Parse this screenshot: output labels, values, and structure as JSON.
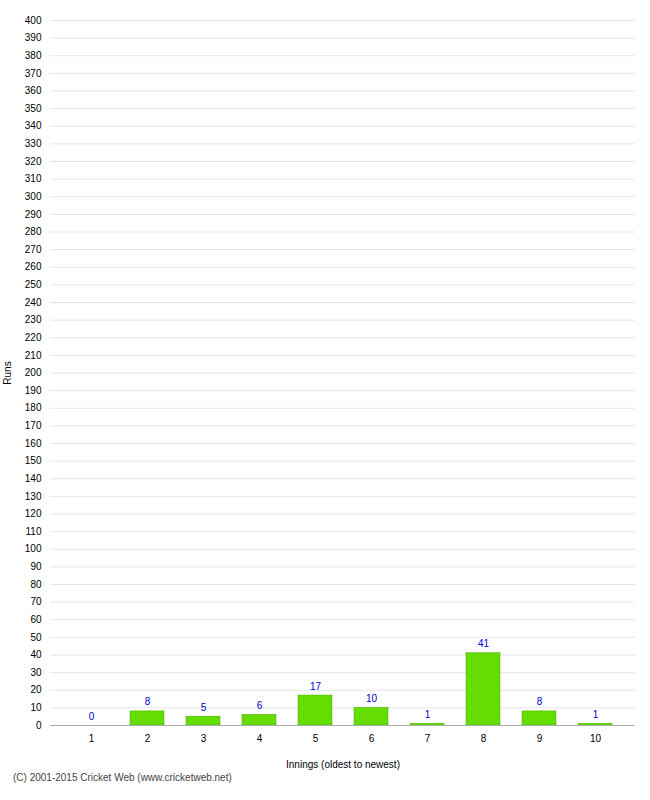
{
  "chart_data": {
    "type": "bar",
    "categories": [
      1,
      2,
      3,
      4,
      5,
      6,
      7,
      8,
      9,
      10
    ],
    "values": [
      0,
      8,
      5,
      6,
      17,
      10,
      1,
      41,
      8,
      1
    ],
    "color": "#66dd00",
    "xlabel": "Innings (oldest to newest)",
    "ylabel": "Runs",
    "ylim": [
      0,
      400
    ],
    "yticks": [
      0,
      10,
      20,
      30,
      40,
      50,
      60,
      70,
      80,
      90,
      100,
      110,
      120,
      130,
      140,
      150,
      160,
      170,
      180,
      190,
      200,
      210,
      220,
      230,
      240,
      250,
      260,
      270,
      280,
      290,
      300,
      310,
      320,
      330,
      340,
      350,
      360,
      370,
      380,
      390,
      400
    ],
    "grid": true,
    "data_labels": true,
    "annotations": [
      "(C) 2001-2015 Cricket Web (www.cricketweb.net)"
    ]
  }
}
